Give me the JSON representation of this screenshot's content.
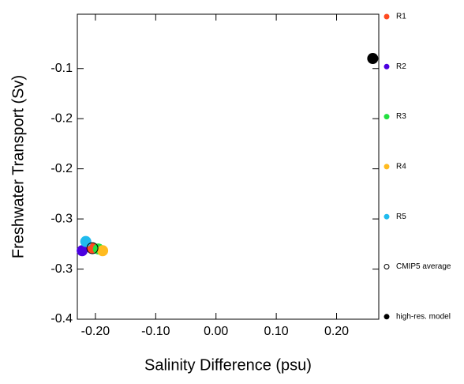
{
  "chart_data": {
    "type": "scatter",
    "xlabel": "Salinity Difference (psu)",
    "ylabel": "Freshwater Transport (Sv)",
    "xlim": [
      -0.23,
      0.27
    ],
    "ylim": [
      -0.4,
      -0.035
    ],
    "xticks": [
      {
        "value": -0.2,
        "label": "-0.20"
      },
      {
        "value": -0.1,
        "label": "-0.10"
      },
      {
        "value": 0,
        "label": "0.00"
      },
      {
        "value": 0.1,
        "label": "0.10"
      },
      {
        "value": 0.2,
        "label": "0.20"
      }
    ],
    "yticks": [
      {
        "value": -0.4,
        "label": "-0.4"
      },
      {
        "value": -0.34,
        "label": "-0.3"
      },
      {
        "value": -0.28,
        "label": "-0.3"
      },
      {
        "value": -0.22,
        "label": "-0.2"
      },
      {
        "value": -0.16,
        "label": "-0.2"
      },
      {
        "value": -0.1,
        "label": "-0.1"
      }
    ],
    "series": [
      {
        "name": "R1",
        "color": "#ff4a20",
        "x": [
          -0.205
        ],
        "values": [
          -0.315
        ]
      },
      {
        "name": "R2",
        "color": "#4b00e0",
        "x": [
          -0.222
        ],
        "values": [
          -0.318
        ]
      },
      {
        "name": "R3",
        "color": "#22e040",
        "x": [
          -0.195
        ],
        "values": [
          -0.316
        ]
      },
      {
        "name": "R4",
        "color": "#ffbb20",
        "x": [
          -0.188
        ],
        "values": [
          -0.318
        ]
      },
      {
        "name": "R5",
        "color": "#20bbee",
        "x": [
          -0.216
        ],
        "values": [
          -0.307
        ]
      },
      {
        "name": "CMIP5 average",
        "color": "#000000",
        "filled": false,
        "x": [
          -0.205
        ],
        "values": [
          -0.315
        ]
      },
      {
        "name": "high-res. model",
        "color": "#000000",
        "x": [
          0.26
        ],
        "values": [
          -0.088
        ]
      }
    ]
  }
}
